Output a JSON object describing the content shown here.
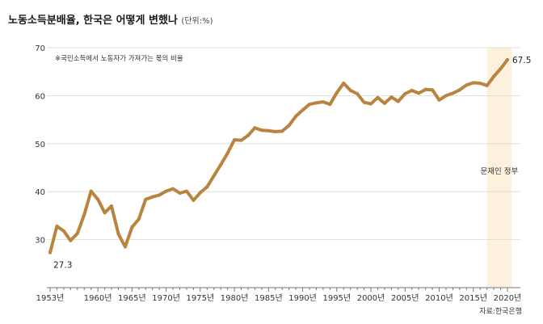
{
  "title": "노동소득분배율, 한국은 어떻게 변했나",
  "unit_label": "(단위:%)",
  "note": "※국민소득에서 노동자가 가져가는 몫의 비율",
  "source": "자료:한국은행",
  "colors": {
    "line": "#b9843f",
    "highlight": "#fdf0dc",
    "grid": "#d9d9d9"
  },
  "chart_data": {
    "type": "line",
    "title": "노동소득분배율, 한국은 어떻게 변했나",
    "xlabel": "",
    "ylabel": "(단위:%)",
    "xlim": [
      1953,
      2020
    ],
    "ylim": [
      20,
      70
    ],
    "y_ticks": [
      30,
      40,
      50,
      60,
      70
    ],
    "x_ticks": [
      {
        "value": 1953,
        "label": "1953년"
      },
      {
        "value": 1960,
        "label": "1960년"
      },
      {
        "value": 1965,
        "label": "1965년"
      },
      {
        "value": 1970,
        "label": "1970년"
      },
      {
        "value": 1975,
        "label": "1975년"
      },
      {
        "value": 1980,
        "label": "1980년"
      },
      {
        "value": 1985,
        "label": "1985년"
      },
      {
        "value": 1990,
        "label": "1990년"
      },
      {
        "value": 1995,
        "label": "1995년"
      },
      {
        "value": 2000,
        "label": "2000년"
      },
      {
        "value": 2005,
        "label": "2005년"
      },
      {
        "value": 2010,
        "label": "2010년"
      },
      {
        "value": 2015,
        "label": "2015년"
      },
      {
        "value": 2020,
        "label": "2020년"
      }
    ],
    "grid": "horizontal",
    "highlight": {
      "from": 2017,
      "to": 2020.6,
      "label": "문재인 정부"
    },
    "series": [
      {
        "name": "노동소득분배율",
        "x": [
          1953,
          1954,
          1955,
          1956,
          1957,
          1958,
          1959,
          1960,
          1961,
          1962,
          1963,
          1964,
          1965,
          1966,
          1967,
          1968,
          1969,
          1970,
          1971,
          1972,
          1973,
          1974,
          1975,
          1976,
          1977,
          1978,
          1979,
          1980,
          1981,
          1982,
          1983,
          1984,
          1985,
          1986,
          1987,
          1988,
          1989,
          1990,
          1991,
          1992,
          1993,
          1994,
          1995,
          1996,
          1997,
          1998,
          1999,
          2000,
          2001,
          2002,
          2003,
          2004,
          2005,
          2006,
          2007,
          2008,
          2009,
          2010,
          2011,
          2012,
          2013,
          2014,
          2015,
          2016,
          2017,
          2018,
          2019,
          2020
        ],
        "values": [
          27.3,
          32.8,
          31.8,
          29.8,
          31.3,
          35.2,
          40.1,
          38.4,
          35.6,
          37.0,
          31.2,
          28.5,
          32.6,
          34.3,
          38.4,
          38.9,
          39.3,
          40.1,
          40.6,
          39.7,
          40.1,
          38.2,
          39.8,
          41.0,
          43.3,
          45.6,
          48.0,
          50.8,
          50.7,
          51.7,
          53.3,
          52.8,
          52.7,
          52.5,
          52.6,
          53.8,
          55.7,
          57.0,
          58.2,
          58.5,
          58.7,
          58.2,
          60.6,
          62.6,
          61.1,
          60.4,
          58.6,
          58.3,
          59.6,
          58.4,
          59.7,
          58.8,
          60.4,
          61.1,
          60.5,
          61.3,
          61.2,
          59.1,
          60.0,
          60.5,
          61.2,
          62.2,
          62.7,
          62.6,
          62.1,
          64.0,
          65.6,
          67.5
        ]
      }
    ],
    "data_labels": [
      {
        "x": 1953,
        "value": 27.3,
        "text": "27.3"
      },
      {
        "x": 2020,
        "value": 67.5,
        "text": "67.5"
      }
    ]
  }
}
